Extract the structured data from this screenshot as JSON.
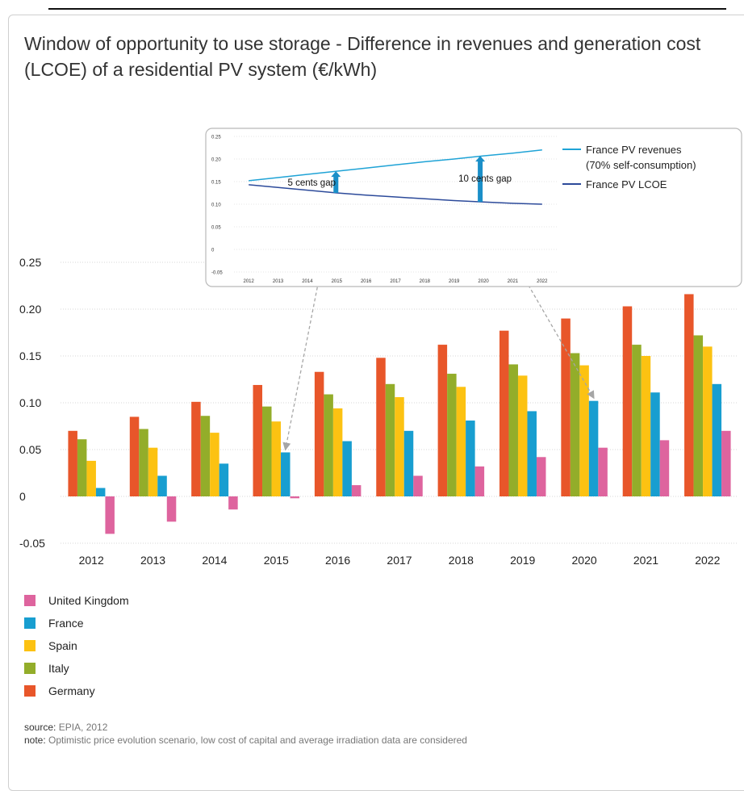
{
  "chart_data": [
    {
      "type": "bar",
      "title": "Window of opportunity to use storage - Difference in revenues and generation cost (LCOE) of a residential PV system (€/kWh)",
      "categories": [
        "2012",
        "2013",
        "2014",
        "2015",
        "2016",
        "2017",
        "2018",
        "2019",
        "2020",
        "2021",
        "2022"
      ],
      "series": [
        {
          "name": "Germany",
          "color": "#e8562a",
          "values": [
            0.07,
            0.085,
            0.101,
            0.119,
            0.133,
            0.148,
            0.162,
            0.177,
            0.19,
            0.203,
            0.216
          ]
        },
        {
          "name": "Italy",
          "color": "#93ad2a",
          "values": [
            0.061,
            0.072,
            0.086,
            0.096,
            0.109,
            0.12,
            0.131,
            0.141,
            0.153,
            0.162,
            0.172
          ]
        },
        {
          "name": "Spain",
          "color": "#fcc212",
          "values": [
            0.038,
            0.052,
            0.068,
            0.08,
            0.094,
            0.106,
            0.117,
            0.129,
            0.14,
            0.15,
            0.16
          ]
        },
        {
          "name": "France",
          "color": "#189ed0",
          "values": [
            0.009,
            0.022,
            0.035,
            0.047,
            0.059,
            0.07,
            0.081,
            0.091,
            0.102,
            0.111,
            0.12
          ]
        },
        {
          "name": "United Kingdom",
          "color": "#de649e",
          "values": [
            -0.04,
            -0.027,
            -0.014,
            -0.002,
            0.012,
            0.022,
            0.032,
            0.042,
            0.052,
            0.06,
            0.07
          ]
        }
      ],
      "yticks": [
        "-0.05",
        "0",
        "0.05",
        "0.10",
        "0.15",
        "0.20",
        "0.25"
      ],
      "ylim": [
        -0.05,
        0.25
      ],
      "grid": true,
      "legend_position": "bottom-left"
    },
    {
      "type": "line",
      "x": [
        "2012",
        "2013",
        "2014",
        "2015",
        "2016",
        "2017",
        "2018",
        "2019",
        "2020",
        "2021",
        "2022"
      ],
      "series": [
        {
          "name": "France PV revenues (70% self-consumption)",
          "color": "#1fa3d6",
          "values": [
            0.152,
            0.159,
            0.166,
            0.173,
            0.18,
            0.187,
            0.194,
            0.2,
            0.207,
            0.213,
            0.22
          ]
        },
        {
          "name": "France PV LCOE",
          "color": "#2c4a9a",
          "values": [
            0.143,
            0.137,
            0.131,
            0.125,
            0.12,
            0.116,
            0.112,
            0.108,
            0.105,
            0.102,
            0.1
          ]
        }
      ],
      "yticks": [
        "-0.05",
        "0",
        "0.05",
        "0.10",
        "0.15",
        "0.20",
        "0.25"
      ],
      "ylim": [
        -0.05,
        0.25
      ],
      "annotations": [
        {
          "text": "5 cents gap",
          "x": "2015"
        },
        {
          "text": "10 cents gap",
          "x": "2020"
        }
      ],
      "legend_labels": [
        "France PV revenues",
        "(70% self-consumption)",
        "France PV LCOE"
      ]
    }
  ],
  "legend": [
    "United Kingdom",
    "France",
    "Spain",
    "Italy",
    "Germany"
  ],
  "legend_colors": [
    "#de649e",
    "#189ed0",
    "#fcc212",
    "#93ad2a",
    "#e8562a"
  ],
  "footer": {
    "source_label": "source:",
    "source_text": " EPIA, 2012",
    "note_label": "note:",
    "note_text": " Optimistic price evolution scenario, low cost of capital and average irradiation data are considered"
  }
}
